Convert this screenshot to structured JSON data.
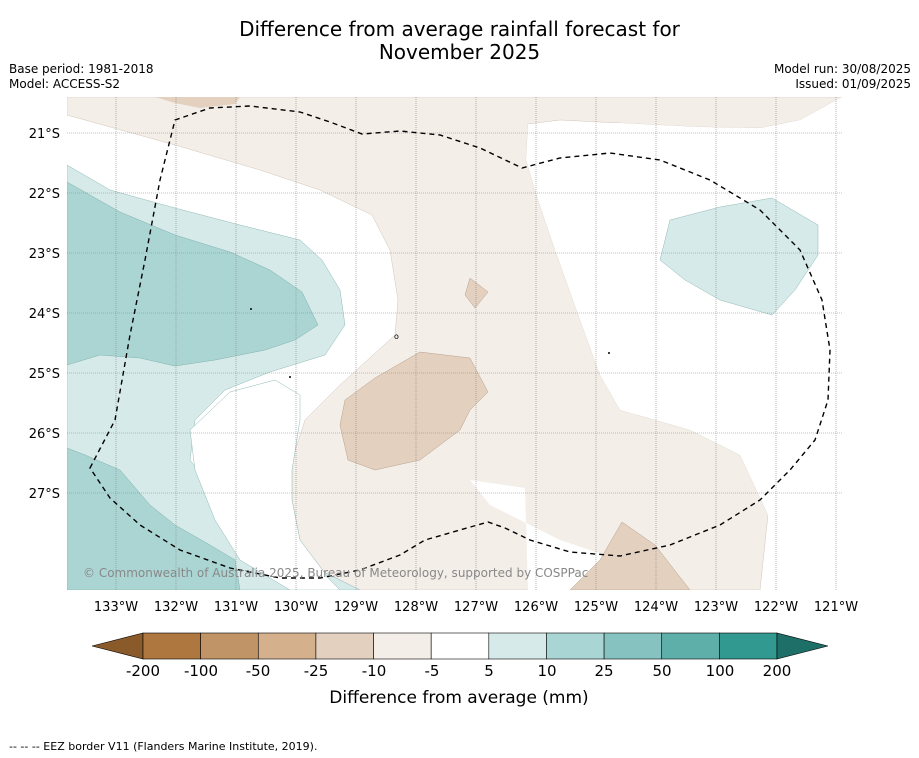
{
  "map": {
    "title_line1": "Difference from average rainfall forecast for",
    "title_line2": "November 2025",
    "base_period": "Base period: 1981-2018",
    "model": "Model: ACCESS-S2",
    "model_run": "Model run: 30/08/2025",
    "issued": "Issued: 01/09/2025",
    "copyright": "© Commonwealth of Australia 2025, Bureau of Meteorology, supported by COSPPac",
    "lat_labels": [
      "21°S",
      "22°S",
      "23°S",
      "24°S",
      "25°S",
      "26°S",
      "27°S"
    ],
    "lon_labels": [
      "133°W",
      "132°W",
      "131°W",
      "130°W",
      "129°W",
      "128°W",
      "127°W",
      "126°W",
      "125°W",
      "124°W",
      "123°W",
      "122°W",
      "121°W"
    ],
    "footer": "--  --  -- EEZ border V11 (Flanders Marine Institute, 2019)."
  },
  "colorbar": {
    "title": "Difference from average (mm)",
    "tick_labels": [
      "-200",
      "-100",
      "-50",
      "-25",
      "-10",
      "-5",
      "5",
      "10",
      "25",
      "50",
      "100",
      "200"
    ],
    "colors": [
      "#8a5a2b",
      "#ad773f",
      "#c19468",
      "#d4b08c",
      "#e3d0bf",
      "#f4eee9",
      "#ffffff",
      "#d6eae9",
      "#a9d6d4",
      "#86c2c0",
      "#5eaeaa",
      "#31998f",
      "#1d6f67"
    ]
  }
}
